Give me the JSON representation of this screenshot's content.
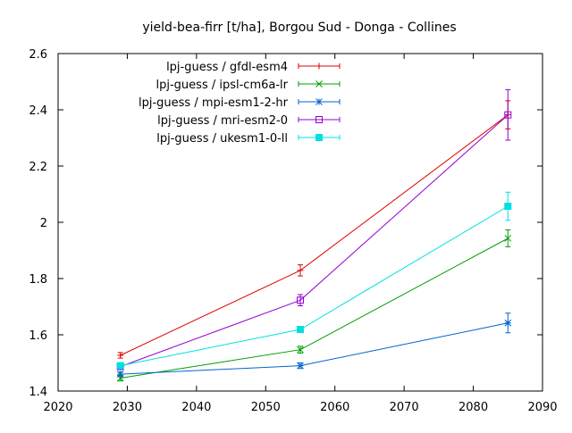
{
  "chart_data": {
    "type": "line",
    "title": "yield-bea-firr [t/ha], Borgou Sud - Donga - Collines",
    "xlabel": "",
    "ylabel": "",
    "xlim": [
      2020,
      2090
    ],
    "ylim": [
      1.4,
      2.6
    ],
    "x_ticks": [
      2020,
      2030,
      2040,
      2050,
      2060,
      2070,
      2080,
      2090
    ],
    "y_ticks": [
      1.4,
      1.6,
      1.8,
      2.0,
      2.2,
      2.4,
      2.6
    ],
    "x_tick_labels": [
      "2020",
      "2030",
      "2040",
      "2050",
      "2060",
      "2070",
      "2080",
      "2090"
    ],
    "y_tick_labels": [
      "1.4",
      "1.6",
      "1.8",
      "2",
      "2.2",
      "2.4",
      "2.6"
    ],
    "grid": false,
    "legend_position": "top-left",
    "x": [
      2029,
      2055,
      2085
    ],
    "series": [
      {
        "name": "lpj-guess / gfdl-esm4",
        "color": "#e00000",
        "marker": "plus",
        "values": [
          1.527,
          1.829,
          2.382
        ],
        "errors": [
          0.01,
          0.02,
          0.05
        ]
      },
      {
        "name": "lpj-guess / ipsl-cm6a-lr",
        "color": "#009e00",
        "marker": "cross",
        "values": [
          1.446,
          1.547,
          1.943
        ],
        "errors": [
          0.01,
          0.012,
          0.03
        ]
      },
      {
        "name": "lpj-guess / mpi-esm1-2-hr",
        "color": "#0066cc",
        "marker": "star",
        "values": [
          1.46,
          1.49,
          1.642
        ],
        "errors": [
          0.008,
          0.01,
          0.035
        ]
      },
      {
        "name": "lpj-guess / mri-esm2-0",
        "color": "#9400d3",
        "marker": "open-square",
        "values": [
          1.487,
          1.723,
          2.382
        ],
        "errors": [
          0.01,
          0.02,
          0.09
        ]
      },
      {
        "name": "lpj-guess / ukesm1-0-ll",
        "color": "#00e0e0",
        "marker": "filled-square",
        "values": [
          1.49,
          1.619,
          2.057
        ],
        "errors": [
          0.01,
          0.01,
          0.05
        ]
      }
    ]
  }
}
